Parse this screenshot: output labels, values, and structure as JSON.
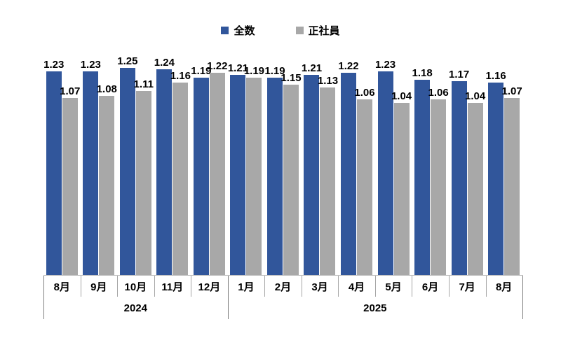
{
  "legend": [
    {
      "label": "全数",
      "color": "#31569B"
    },
    {
      "label": "正社員",
      "color": "#A8A8A8"
    }
  ],
  "chart_data": {
    "type": "bar",
    "title": "",
    "categories": [
      "8月",
      "9月",
      "10月",
      "11月",
      "12月",
      "1月",
      "2月",
      "3月",
      "4月",
      "5月",
      "6月",
      "7月",
      "8月"
    ],
    "year_groups": [
      {
        "label": "2024",
        "start": 0,
        "count": 5
      },
      {
        "label": "2025",
        "start": 5,
        "count": 8
      }
    ],
    "series": [
      {
        "name": "全数",
        "color": "#31569B",
        "values": [
          1.23,
          1.23,
          1.25,
          1.24,
          1.19,
          1.21,
          1.19,
          1.21,
          1.22,
          1.23,
          1.18,
          1.17,
          1.16
        ]
      },
      {
        "name": "正社員",
        "color": "#A8A8A8",
        "values": [
          1.07,
          1.08,
          1.11,
          1.16,
          1.22,
          1.19,
          1.15,
          1.13,
          1.06,
          1.04,
          1.06,
          1.04,
          1.07
        ]
      }
    ],
    "ylim": [
      0,
      1.25
    ],
    "value_labels": true,
    "grid": false,
    "legend_position": "top"
  }
}
